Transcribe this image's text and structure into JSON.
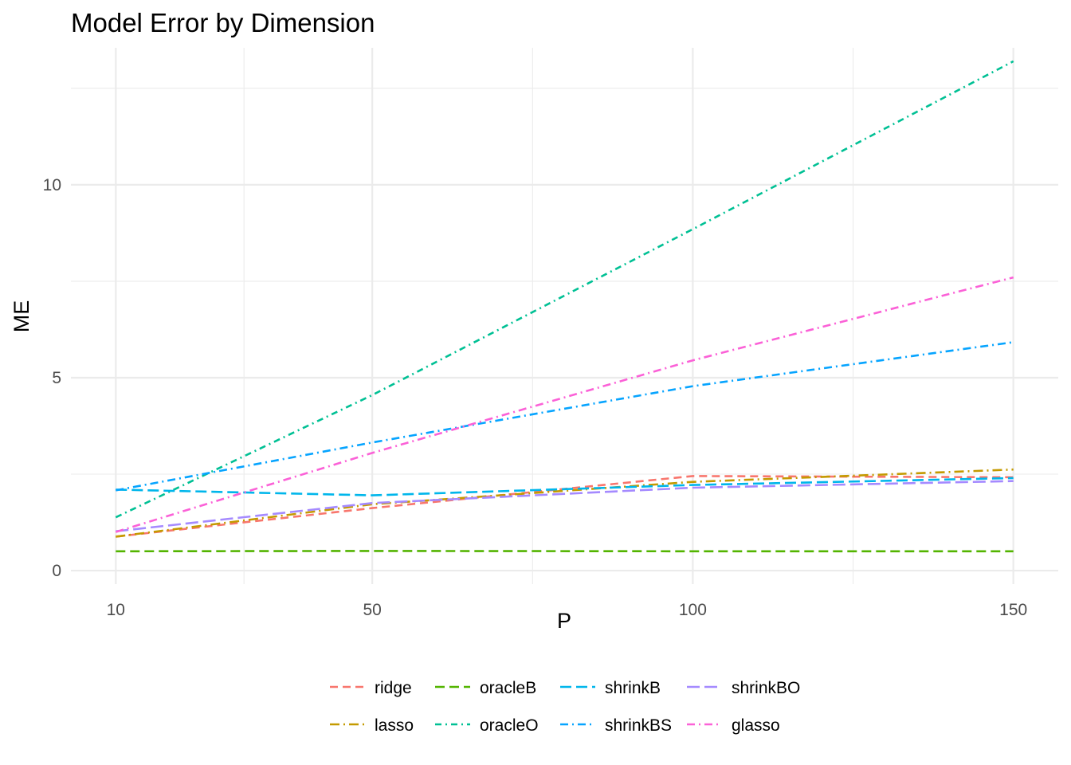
{
  "chart_data": {
    "type": "line",
    "title": "Model Error by Dimension",
    "xlabel": "P",
    "ylabel": "ME",
    "x": [
      10,
      50,
      100,
      150
    ],
    "xlim": [
      3,
      157
    ],
    "ylim": [
      -0.35,
      13.55
    ],
    "x_ticks": [
      10,
      50,
      100,
      150
    ],
    "y_ticks": [
      0,
      5,
      10
    ],
    "grid": true,
    "legend_position": "bottom",
    "series": [
      {
        "name": "ridge",
        "color": "#F8766D",
        "dash": "10 6",
        "values": [
          0.88,
          1.62,
          2.45,
          2.42
        ]
      },
      {
        "name": "lasso",
        "color": "#C49A00",
        "dash": "12 5 2 5",
        "values": [
          0.88,
          1.72,
          2.3,
          2.62
        ]
      },
      {
        "name": "oracleB",
        "color": "#53B400",
        "dash": "12 6",
        "values": [
          0.5,
          0.51,
          0.5,
          0.5
        ]
      },
      {
        "name": "oracleO",
        "color": "#00C094",
        "dash": "8 5 2 5",
        "values": [
          1.38,
          4.55,
          8.85,
          13.2
        ]
      },
      {
        "name": "shrinkB",
        "color": "#00B6EB",
        "dash": "14 6",
        "values": [
          2.1,
          1.95,
          2.22,
          2.4
        ]
      },
      {
        "name": "shrinkBS",
        "color": "#06A4FF",
        "dash": "10 5 2 5",
        "values": [
          2.08,
          3.32,
          4.78,
          5.92
        ]
      },
      {
        "name": "shrinkBO",
        "color": "#A58AFF",
        "dash": "16 6",
        "values": [
          1.02,
          1.75,
          2.15,
          2.32
        ]
      },
      {
        "name": "glasso",
        "color": "#FB61D7",
        "dash": "10 5 2 5",
        "values": [
          1.0,
          3.05,
          5.45,
          7.6
        ]
      }
    ]
  }
}
